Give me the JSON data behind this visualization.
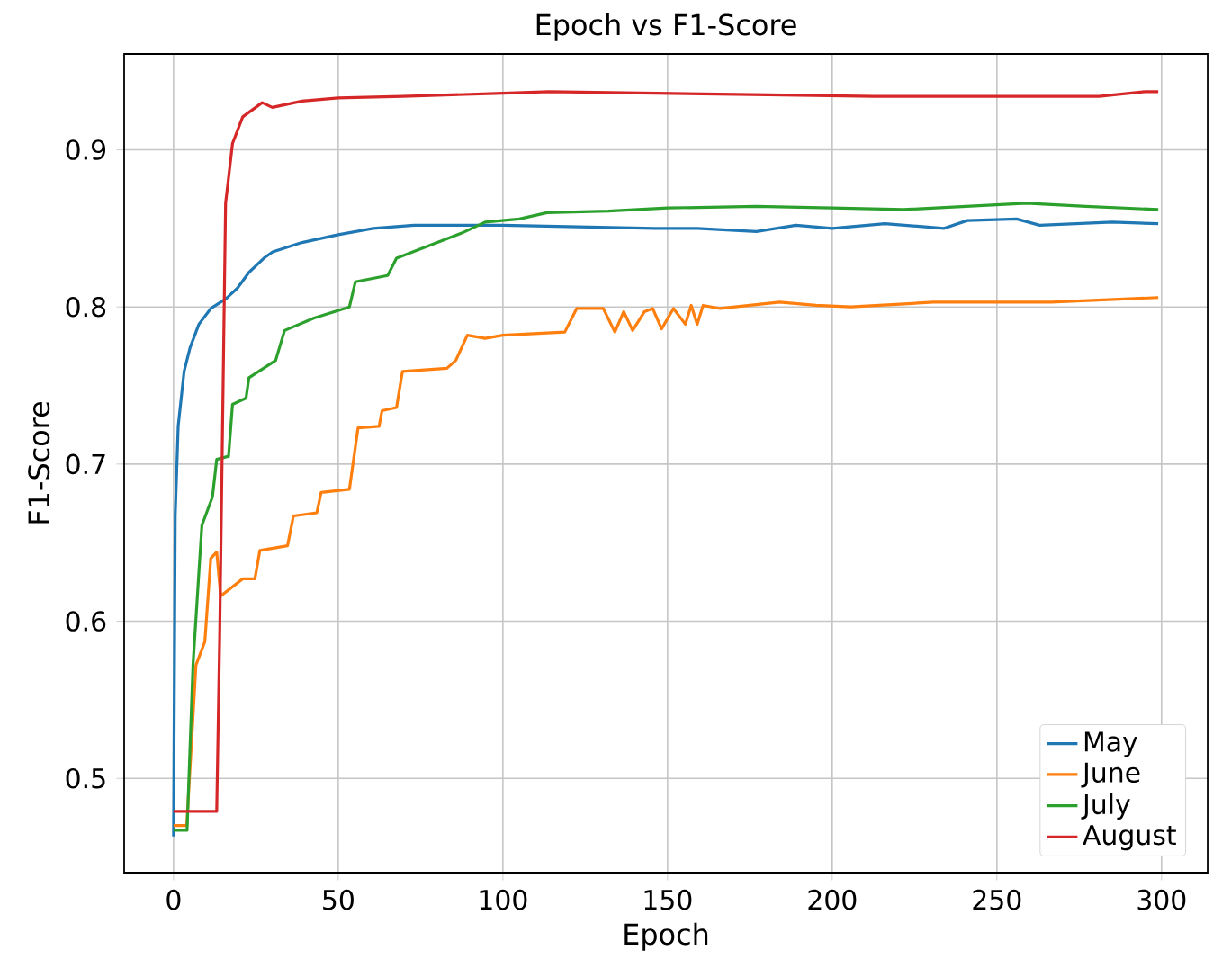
{
  "chart_data": {
    "type": "line",
    "title": "Epoch vs F1-Score",
    "xlabel": "Epoch",
    "ylabel": "F1-Score",
    "xlim": [
      -15,
      314
    ],
    "ylim": [
      0.44,
      0.961
    ],
    "xticks": [
      0,
      50,
      100,
      150,
      200,
      250,
      300
    ],
    "yticks": [
      0.5,
      0.6,
      0.7,
      0.8,
      0.9
    ],
    "grid": true,
    "legend": "bottom right",
    "series": [
      {
        "name": "May",
        "color": "#1f77b4",
        "x": [
          0,
          0.5,
          1.4,
          3.2,
          5,
          7.7,
          11.3,
          15.8,
          19.4,
          22.9,
          27.4,
          30.1,
          39,
          50,
          60.6,
          73,
          87.5,
          100,
          123,
          146,
          159,
          177,
          189,
          200,
          216,
          234,
          241,
          256,
          263,
          285,
          299
        ],
        "values": [
          0.463,
          0.667,
          0.724,
          0.759,
          0.774,
          0.789,
          0.799,
          0.805,
          0.812,
          0.822,
          0.831,
          0.835,
          0.841,
          0.846,
          0.85,
          0.852,
          0.852,
          0.852,
          0.851,
          0.85,
          0.85,
          0.848,
          0.852,
          0.85,
          0.853,
          0.85,
          0.855,
          0.856,
          0.852,
          0.854,
          0.853
        ]
      },
      {
        "name": "June",
        "color": "#ff7f0e",
        "x": [
          0,
          4,
          6.8,
          9.5,
          11.3,
          13.1,
          14.3,
          21,
          24.7,
          26.2,
          34.6,
          36.4,
          43.5,
          44.8,
          53.4,
          56,
          62.4,
          63.3,
          67.7,
          69.5,
          83,
          85.7,
          89.2,
          94.6,
          100,
          118.8,
          122.4,
          130.5,
          134,
          136.7,
          139.4,
          143,
          145.5,
          148.2,
          151.8,
          155.4,
          157.2,
          159,
          160.8,
          166,
          184,
          195,
          205.6,
          230.6,
          266.5,
          299
        ],
        "values": [
          0.47,
          0.47,
          0.572,
          0.587,
          0.64,
          0.644,
          0.616,
          0.627,
          0.627,
          0.645,
          0.648,
          0.667,
          0.669,
          0.682,
          0.684,
          0.723,
          0.724,
          0.734,
          0.736,
          0.759,
          0.761,
          0.766,
          0.782,
          0.78,
          0.782,
          0.784,
          0.799,
          0.799,
          0.784,
          0.797,
          0.785,
          0.797,
          0.799,
          0.786,
          0.799,
          0.789,
          0.801,
          0.789,
          0.801,
          0.799,
          0.803,
          0.801,
          0.8,
          0.803,
          0.803,
          0.806
        ]
      },
      {
        "name": "July",
        "color": "#2ca02c",
        "x": [
          0,
          4.1,
          5.9,
          8.6,
          11.8,
          13.1,
          16.7,
          17.9,
          22,
          22.9,
          31,
          33.7,
          42.7,
          53.4,
          55.2,
          65,
          67.7,
          77.6,
          87.5,
          94.6,
          105,
          113.4,
          132,
          150,
          177,
          200,
          221.7,
          259,
          277,
          299
        ],
        "values": [
          0.467,
          0.467,
          0.572,
          0.661,
          0.679,
          0.703,
          0.705,
          0.738,
          0.742,
          0.755,
          0.766,
          0.785,
          0.793,
          0.8,
          0.816,
          0.82,
          0.831,
          0.839,
          0.847,
          0.854,
          0.856,
          0.86,
          0.861,
          0.863,
          0.864,
          0.863,
          0.862,
          0.866,
          0.864,
          0.862
        ]
      },
      {
        "name": "August",
        "color": "#d62728",
        "x": [
          0,
          13.1,
          14,
          15.8,
          17.9,
          21,
          26.9,
          30,
          39,
          50,
          69.5,
          100,
          114,
          146.6,
          180.5,
          212.7,
          281,
          295,
          299
        ],
        "values": [
          0.479,
          0.479,
          0.59,
          0.866,
          0.904,
          0.921,
          0.93,
          0.927,
          0.931,
          0.933,
          0.934,
          0.936,
          0.937,
          0.936,
          0.935,
          0.934,
          0.934,
          0.937,
          0.937
        ]
      }
    ]
  }
}
